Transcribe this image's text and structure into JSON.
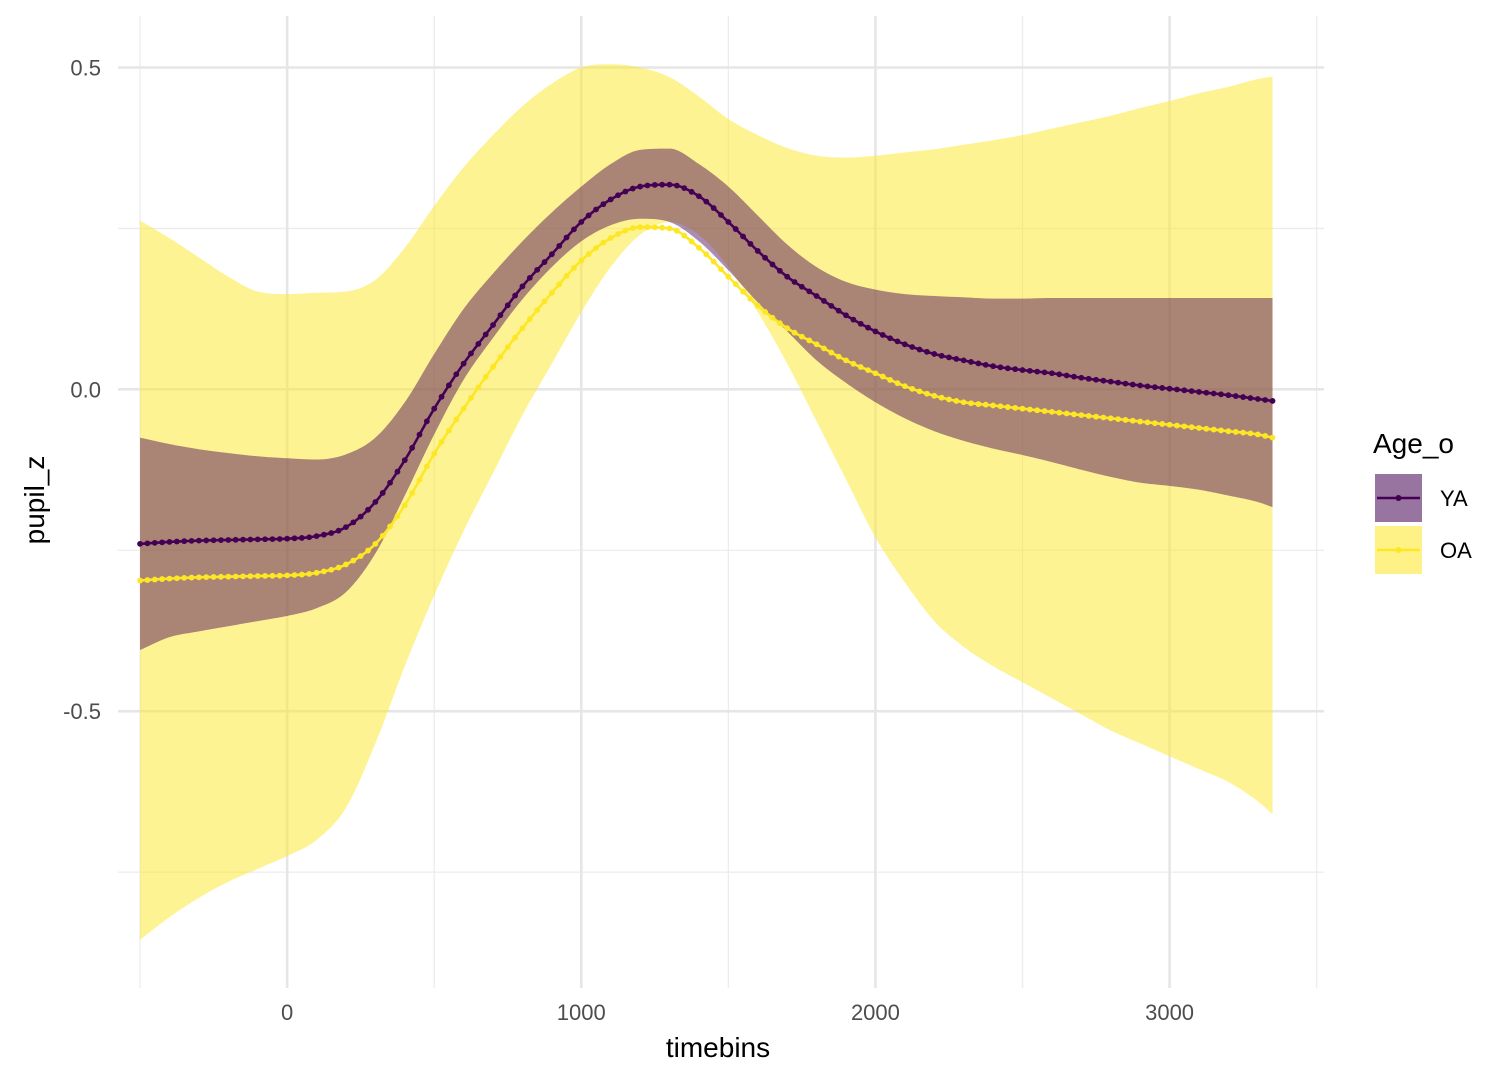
{
  "chart_data": {
    "type": "line",
    "title": "",
    "xlabel": "timebins",
    "ylabel": "pupil_z",
    "xlim": [
      -575,
      3525
    ],
    "ylim": [
      -0.93,
      0.58
    ],
    "x_ticks": [
      0,
      1000,
      2000,
      3000
    ],
    "x_tick_labels": [
      "0",
      "1000",
      "2000",
      "3000"
    ],
    "x_minor_ticks": [
      -500,
      500,
      1500,
      2500,
      3500
    ],
    "y_ticks": [
      -0.5,
      0.0,
      0.5
    ],
    "y_tick_labels": [
      "-0.5",
      "0.0",
      "0.5"
    ],
    "y_minor_ticks": [
      -0.75,
      -0.25,
      0.25
    ],
    "grid": true,
    "legend": {
      "title": "Age_o",
      "placement": "right",
      "entries": [
        "YA",
        "OA"
      ]
    },
    "x": [
      -500,
      -400,
      -300,
      -200,
      -100,
      0,
      100,
      200,
      300,
      400,
      500,
      600,
      700,
      800,
      900,
      1000,
      1100,
      1200,
      1300,
      1400,
      1500,
      1600,
      1700,
      1800,
      1900,
      2000,
      2100,
      2200,
      2300,
      2400,
      2500,
      2600,
      2700,
      2800,
      2900,
      3000,
      3100,
      3200,
      3300,
      3350
    ],
    "series": [
      {
        "name": "YA",
        "color": "#440154",
        "ribbon_color": "#440154",
        "ribbon_opacity": 0.45,
        "point_step": 25,
        "values": [
          -0.24,
          -0.237,
          -0.235,
          -0.234,
          -0.233,
          -0.232,
          -0.228,
          -0.214,
          -0.175,
          -0.11,
          -0.03,
          0.04,
          0.1,
          0.16,
          0.21,
          0.26,
          0.295,
          0.315,
          0.318,
          0.3,
          0.26,
          0.215,
          0.175,
          0.145,
          0.115,
          0.09,
          0.07,
          0.055,
          0.045,
          0.036,
          0.03,
          0.025,
          0.018,
          0.012,
          0.006,
          0.001,
          -0.004,
          -0.009,
          -0.015,
          -0.018
        ],
        "lower": [
          -0.405,
          -0.385,
          -0.376,
          -0.368,
          -0.36,
          -0.352,
          -0.34,
          -0.315,
          -0.255,
          -0.165,
          -0.07,
          0.015,
          0.08,
          0.14,
          0.19,
          0.23,
          0.255,
          0.265,
          0.26,
          0.23,
          0.185,
          0.135,
          0.09,
          0.045,
          0.01,
          -0.02,
          -0.045,
          -0.065,
          -0.08,
          -0.092,
          -0.102,
          -0.113,
          -0.125,
          -0.136,
          -0.145,
          -0.15,
          -0.156,
          -0.165,
          -0.175,
          -0.183
        ],
        "upper": [
          -0.075,
          -0.085,
          -0.093,
          -0.099,
          -0.104,
          -0.107,
          -0.109,
          -0.101,
          -0.075,
          -0.02,
          0.055,
          0.125,
          0.18,
          0.23,
          0.275,
          0.315,
          0.35,
          0.372,
          0.374,
          0.35,
          0.315,
          0.27,
          0.225,
          0.19,
          0.167,
          0.155,
          0.148,
          0.145,
          0.143,
          0.141,
          0.141,
          0.142,
          0.142,
          0.142,
          0.142,
          0.142,
          0.142,
          0.142,
          0.142,
          0.142
        ]
      },
      {
        "name": "OA",
        "color": "#fde725",
        "ribbon_color": "#fde725",
        "ribbon_opacity": 0.5,
        "point_step": 25,
        "values": [
          -0.297,
          -0.294,
          -0.292,
          -0.291,
          -0.29,
          -0.289,
          -0.285,
          -0.272,
          -0.24,
          -0.18,
          -0.1,
          -0.03,
          0.035,
          0.095,
          0.15,
          0.2,
          0.235,
          0.252,
          0.25,
          0.22,
          0.175,
          0.13,
          0.095,
          0.07,
          0.045,
          0.025,
          0.005,
          -0.01,
          -0.02,
          -0.025,
          -0.03,
          -0.035,
          -0.04,
          -0.045,
          -0.05,
          -0.055,
          -0.06,
          -0.065,
          -0.07,
          -0.075
        ],
        "lower": [
          -0.855,
          -0.82,
          -0.79,
          -0.765,
          -0.745,
          -0.725,
          -0.7,
          -0.65,
          -0.55,
          -0.43,
          -0.32,
          -0.22,
          -0.13,
          -0.04,
          0.04,
          0.12,
          0.19,
          0.24,
          0.26,
          0.24,
          0.19,
          0.12,
          0.04,
          -0.05,
          -0.14,
          -0.23,
          -0.3,
          -0.36,
          -0.4,
          -0.43,
          -0.455,
          -0.48,
          -0.505,
          -0.53,
          -0.55,
          -0.57,
          -0.59,
          -0.61,
          -0.64,
          -0.66
        ],
        "upper": [
          0.262,
          0.235,
          0.205,
          0.175,
          0.152,
          0.148,
          0.15,
          0.152,
          0.17,
          0.22,
          0.285,
          0.345,
          0.395,
          0.44,
          0.475,
          0.5,
          0.505,
          0.5,
          0.485,
          0.455,
          0.42,
          0.395,
          0.375,
          0.363,
          0.36,
          0.363,
          0.368,
          0.373,
          0.38,
          0.387,
          0.395,
          0.405,
          0.415,
          0.425,
          0.437,
          0.448,
          0.46,
          0.47,
          0.482,
          0.486
        ]
      }
    ]
  }
}
